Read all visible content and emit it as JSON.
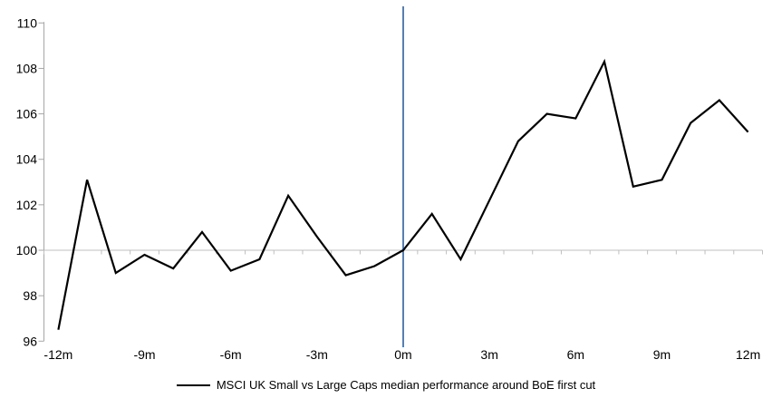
{
  "chart_data": {
    "type": "line",
    "title": "",
    "legend": "MSCI UK Small vs Large Caps median performance around BoE first cut",
    "x": [
      -12,
      -11,
      -10,
      -9,
      -8,
      -7,
      -6,
      -5,
      -4,
      -3,
      -2,
      -1,
      0,
      1,
      2,
      3,
      4,
      5,
      6,
      7,
      8,
      9,
      10,
      11,
      12
    ],
    "series": [
      {
        "name": "MSCI UK Small vs Large Caps median performance around BoE first cut",
        "values": [
          96.5,
          103.1,
          99.0,
          99.8,
          99.2,
          100.8,
          99.1,
          99.6,
          102.4,
          100.6,
          98.9,
          99.3,
          100.0,
          101.6,
          99.6,
          102.2,
          104.8,
          106.0,
          105.8,
          108.3,
          102.8,
          103.1,
          105.6,
          106.6,
          105.2
        ]
      }
    ],
    "xlabel": "",
    "ylabel": "",
    "ylim": [
      96,
      110
    ],
    "y_ticks": [
      96,
      98,
      100,
      102,
      104,
      106,
      108,
      110
    ],
    "x_tick_labels": [
      "-12m",
      "-9m",
      "-6m",
      "-3m",
      "0m",
      "3m",
      "6m",
      "9m",
      "12m"
    ],
    "x_tick_label_values": [
      -12,
      -9,
      -6,
      -3,
      0,
      3,
      6,
      9,
      12
    ],
    "baseline_value": 100,
    "event_line_x": 0,
    "grid": "none",
    "legend_position": "bottom",
    "colors": {
      "series": "#000000",
      "event_line": "#4F81BD",
      "axis": "#A6A6A6",
      "baseline": "#BFBFBF",
      "text": "#000000",
      "background": "#FFFFFF"
    }
  }
}
